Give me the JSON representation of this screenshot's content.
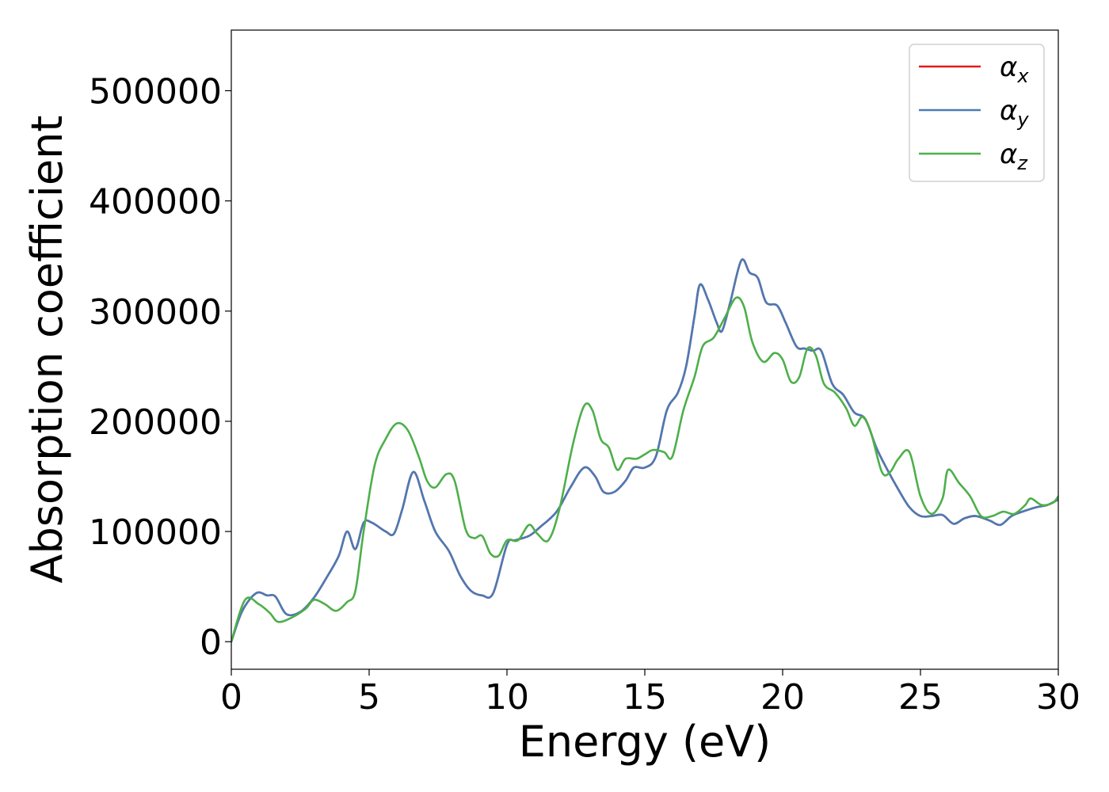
{
  "chart_data": {
    "type": "line",
    "xlabel": "Energy (eV)",
    "ylabel": "Absorption coefficient",
    "xlim": [
      0,
      30
    ],
    "ylim": [
      -25000,
      555000
    ],
    "x_ticks": [
      "0",
      "5",
      "10",
      "15",
      "20",
      "25",
      "30"
    ],
    "y_ticks": [
      "0",
      "100000",
      "200000",
      "300000",
      "400000",
      "500000"
    ],
    "grid": false,
    "legend_position": "top-right",
    "series": [
      {
        "name": "α",
        "subscript": "x",
        "color": "#e41a1c",
        "points": [
          [
            0,
            0
          ],
          [
            0.4,
            28000
          ],
          [
            0.9,
            44000
          ],
          [
            1.3,
            42000
          ],
          [
            1.6,
            41000
          ],
          [
            2.0,
            25000
          ],
          [
            2.5,
            27000
          ],
          [
            3.0,
            40000
          ],
          [
            3.5,
            60000
          ],
          [
            3.9,
            78000
          ],
          [
            4.2,
            100000
          ],
          [
            4.5,
            84000
          ],
          [
            4.8,
            108000
          ],
          [
            5.1,
            108000
          ],
          [
            5.6,
            100000
          ],
          [
            5.9,
            98000
          ],
          [
            6.2,
            120000
          ],
          [
            6.6,
            154000
          ],
          [
            7.0,
            128000
          ],
          [
            7.4,
            100000
          ],
          [
            7.9,
            82000
          ],
          [
            8.3,
            60000
          ],
          [
            8.7,
            46000
          ],
          [
            9.1,
            42000
          ],
          [
            9.5,
            44000
          ],
          [
            10.0,
            88000
          ],
          [
            10.3,
            92000
          ],
          [
            10.8,
            96000
          ],
          [
            11.2,
            104000
          ],
          [
            11.8,
            118000
          ],
          [
            12.3,
            140000
          ],
          [
            12.8,
            158000
          ],
          [
            13.2,
            150000
          ],
          [
            13.5,
            136000
          ],
          [
            13.9,
            136000
          ],
          [
            14.3,
            146000
          ],
          [
            14.6,
            158000
          ],
          [
            15.0,
            158000
          ],
          [
            15.4,
            168000
          ],
          [
            15.8,
            210000
          ],
          [
            16.2,
            226000
          ],
          [
            16.5,
            250000
          ],
          [
            16.8,
            295000
          ],
          [
            17.0,
            324000
          ],
          [
            17.3,
            310000
          ],
          [
            17.6,
            290000
          ],
          [
            17.8,
            282000
          ],
          [
            18.1,
            308000
          ],
          [
            18.5,
            346000
          ],
          [
            18.8,
            335000
          ],
          [
            19.1,
            330000
          ],
          [
            19.4,
            308000
          ],
          [
            19.8,
            305000
          ],
          [
            20.1,
            290000
          ],
          [
            20.5,
            268000
          ],
          [
            20.8,
            266000
          ],
          [
            21.1,
            264000
          ],
          [
            21.4,
            264000
          ],
          [
            21.8,
            234000
          ],
          [
            22.2,
            224000
          ],
          [
            22.6,
            208000
          ],
          [
            23.0,
            202000
          ],
          [
            23.4,
            176000
          ],
          [
            23.8,
            156000
          ],
          [
            24.2,
            138000
          ],
          [
            24.6,
            122000
          ],
          [
            25.0,
            114000
          ],
          [
            25.4,
            114000
          ],
          [
            25.8,
            115000
          ],
          [
            26.2,
            107000
          ],
          [
            26.6,
            112000
          ],
          [
            27.0,
            114000
          ],
          [
            27.5,
            110000
          ],
          [
            27.9,
            106000
          ],
          [
            28.3,
            114000
          ],
          [
            28.7,
            118000
          ],
          [
            29.2,
            122000
          ],
          [
            29.6,
            124000
          ],
          [
            30.0,
            129000
          ]
        ]
      },
      {
        "name": "α",
        "subscript": "y",
        "color": "#4a7ab5",
        "points": [
          [
            0,
            0
          ],
          [
            0.4,
            28000
          ],
          [
            0.9,
            44000
          ],
          [
            1.3,
            42000
          ],
          [
            1.6,
            41000
          ],
          [
            2.0,
            25000
          ],
          [
            2.5,
            27000
          ],
          [
            3.0,
            40000
          ],
          [
            3.5,
            60000
          ],
          [
            3.9,
            78000
          ],
          [
            4.2,
            100000
          ],
          [
            4.5,
            84000
          ],
          [
            4.8,
            108000
          ],
          [
            5.1,
            108000
          ],
          [
            5.6,
            100000
          ],
          [
            5.9,
            98000
          ],
          [
            6.2,
            120000
          ],
          [
            6.6,
            154000
          ],
          [
            7.0,
            128000
          ],
          [
            7.4,
            100000
          ],
          [
            7.9,
            82000
          ],
          [
            8.3,
            60000
          ],
          [
            8.7,
            46000
          ],
          [
            9.1,
            42000
          ],
          [
            9.5,
            44000
          ],
          [
            10.0,
            88000
          ],
          [
            10.3,
            92000
          ],
          [
            10.8,
            96000
          ],
          [
            11.2,
            104000
          ],
          [
            11.8,
            118000
          ],
          [
            12.3,
            140000
          ],
          [
            12.8,
            158000
          ],
          [
            13.2,
            150000
          ],
          [
            13.5,
            136000
          ],
          [
            13.9,
            136000
          ],
          [
            14.3,
            146000
          ],
          [
            14.6,
            158000
          ],
          [
            15.0,
            158000
          ],
          [
            15.4,
            168000
          ],
          [
            15.8,
            210000
          ],
          [
            16.2,
            226000
          ],
          [
            16.5,
            250000
          ],
          [
            16.8,
            295000
          ],
          [
            17.0,
            324000
          ],
          [
            17.3,
            310000
          ],
          [
            17.6,
            290000
          ],
          [
            17.8,
            282000
          ],
          [
            18.1,
            308000
          ],
          [
            18.5,
            346000
          ],
          [
            18.8,
            335000
          ],
          [
            19.1,
            330000
          ],
          [
            19.4,
            308000
          ],
          [
            19.8,
            305000
          ],
          [
            20.1,
            290000
          ],
          [
            20.5,
            268000
          ],
          [
            20.8,
            266000
          ],
          [
            21.1,
            264000
          ],
          [
            21.4,
            264000
          ],
          [
            21.8,
            234000
          ],
          [
            22.2,
            224000
          ],
          [
            22.6,
            208000
          ],
          [
            23.0,
            202000
          ],
          [
            23.4,
            176000
          ],
          [
            23.8,
            156000
          ],
          [
            24.2,
            138000
          ],
          [
            24.6,
            122000
          ],
          [
            25.0,
            114000
          ],
          [
            25.4,
            114000
          ],
          [
            25.8,
            115000
          ],
          [
            26.2,
            107000
          ],
          [
            26.6,
            112000
          ],
          [
            27.0,
            114000
          ],
          [
            27.5,
            110000
          ],
          [
            27.9,
            106000
          ],
          [
            28.3,
            114000
          ],
          [
            28.7,
            118000
          ],
          [
            29.2,
            122000
          ],
          [
            29.6,
            124000
          ],
          [
            30.0,
            129000
          ]
        ]
      },
      {
        "name": "α",
        "subscript": "z",
        "color": "#4daf4a",
        "points": [
          [
            0,
            0
          ],
          [
            0.5,
            38000
          ],
          [
            1.0,
            34000
          ],
          [
            1.4,
            26000
          ],
          [
            1.7,
            18000
          ],
          [
            2.2,
            22000
          ],
          [
            2.7,
            30000
          ],
          [
            3.0,
            38000
          ],
          [
            3.4,
            34000
          ],
          [
            3.8,
            28000
          ],
          [
            4.2,
            36000
          ],
          [
            4.5,
            46000
          ],
          [
            4.8,
            100000
          ],
          [
            5.2,
            160000
          ],
          [
            5.6,
            184000
          ],
          [
            6.0,
            198000
          ],
          [
            6.4,
            192000
          ],
          [
            6.8,
            168000
          ],
          [
            7.1,
            146000
          ],
          [
            7.4,
            140000
          ],
          [
            7.8,
            152000
          ],
          [
            8.1,
            146000
          ],
          [
            8.5,
            102000
          ],
          [
            8.8,
            94000
          ],
          [
            9.1,
            96000
          ],
          [
            9.4,
            80000
          ],
          [
            9.7,
            78000
          ],
          [
            10.0,
            92000
          ],
          [
            10.4,
            92000
          ],
          [
            10.8,
            106000
          ],
          [
            11.1,
            98000
          ],
          [
            11.5,
            92000
          ],
          [
            11.9,
            120000
          ],
          [
            12.4,
            180000
          ],
          [
            12.8,
            214000
          ],
          [
            13.1,
            210000
          ],
          [
            13.4,
            184000
          ],
          [
            13.7,
            176000
          ],
          [
            14.0,
            156000
          ],
          [
            14.3,
            166000
          ],
          [
            14.7,
            166000
          ],
          [
            15.0,
            170000
          ],
          [
            15.3,
            174000
          ],
          [
            15.7,
            172000
          ],
          [
            16.0,
            168000
          ],
          [
            16.4,
            210000
          ],
          [
            16.8,
            240000
          ],
          [
            17.1,
            268000
          ],
          [
            17.5,
            276000
          ],
          [
            17.9,
            294000
          ],
          [
            18.3,
            312000
          ],
          [
            18.6,
            304000
          ],
          [
            18.9,
            272000
          ],
          [
            19.3,
            254000
          ],
          [
            19.7,
            262000
          ],
          [
            20.0,
            256000
          ],
          [
            20.3,
            236000
          ],
          [
            20.6,
            240000
          ],
          [
            20.9,
            266000
          ],
          [
            21.2,
            260000
          ],
          [
            21.5,
            234000
          ],
          [
            21.9,
            226000
          ],
          [
            22.3,
            212000
          ],
          [
            22.6,
            196000
          ],
          [
            22.9,
            204000
          ],
          [
            23.2,
            190000
          ],
          [
            23.6,
            154000
          ],
          [
            23.9,
            154000
          ],
          [
            24.2,
            166000
          ],
          [
            24.6,
            172000
          ],
          [
            25.0,
            132000
          ],
          [
            25.4,
            116000
          ],
          [
            25.8,
            130000
          ],
          [
            26.0,
            156000
          ],
          [
            26.4,
            144000
          ],
          [
            26.8,
            132000
          ],
          [
            27.2,
            114000
          ],
          [
            27.6,
            114000
          ],
          [
            28.0,
            118000
          ],
          [
            28.4,
            116000
          ],
          [
            28.8,
            124000
          ],
          [
            29.0,
            130000
          ],
          [
            29.4,
            124000
          ],
          [
            29.8,
            126000
          ],
          [
            30.0,
            132000
          ]
        ]
      }
    ]
  }
}
